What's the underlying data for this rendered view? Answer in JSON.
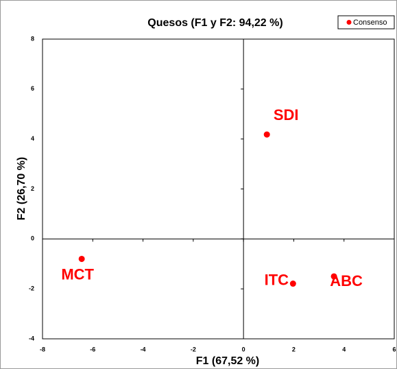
{
  "chart_data": {
    "type": "scatter",
    "title": "Quesos (F1 y F2: 94,22 %)",
    "xlabel": "F1 (67,52 %)",
    "ylabel": "F2 (26,70 %)",
    "series": [
      {
        "name": "Consenso",
        "color": "#ff0000",
        "x": [
          0.93,
          -6.44,
          1.97,
          3.6
        ],
        "values": [
          4.18,
          -0.8,
          -1.79,
          -1.5
        ],
        "labels": [
          "SDI",
          "MCT",
          "ITC",
          "ABC"
        ]
      }
    ],
    "xlim": [
      -8,
      6
    ],
    "xticks": [
      -8,
      -6,
      -4,
      -2,
      0,
      2,
      4,
      6
    ],
    "ylim": [
      -4,
      8
    ],
    "yticks": [
      -4,
      -2,
      0,
      2,
      4,
      6,
      8
    ],
    "legend": "upper right"
  }
}
